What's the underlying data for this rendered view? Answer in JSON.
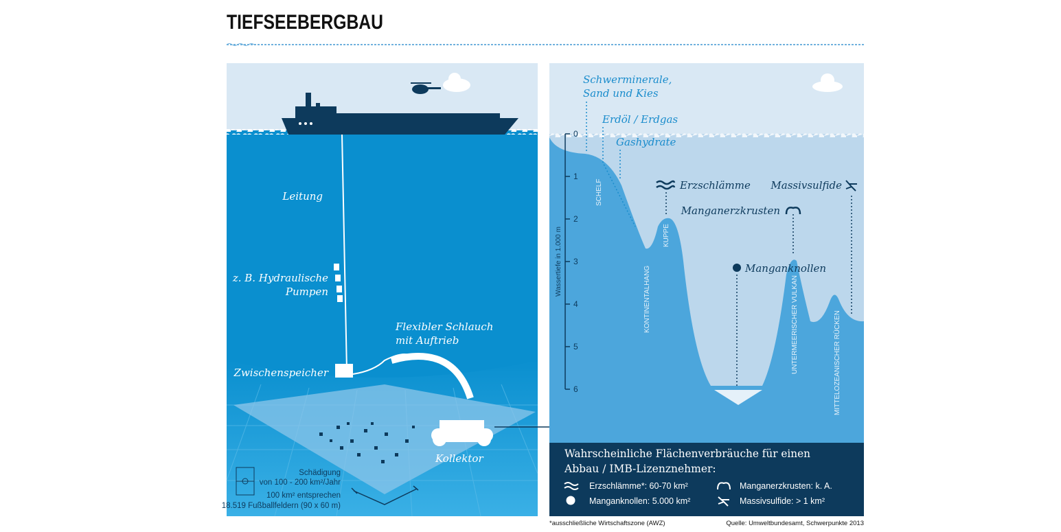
{
  "title": "TIEFSEEBERGBAU",
  "left": {
    "pipe_label": "Leitung",
    "pumps_label": [
      "z. B. Hydraulische",
      "Pumpen"
    ],
    "hose_label": [
      "Flexibler Schlauch",
      "mit Auftrieb"
    ],
    "buffer_label": "Zwischenspeicher",
    "collector_label": "Kollektor",
    "damage_note": [
      "Schädigung",
      "von 100 - 200 km²/Jahr",
      "100 km² entsprechen",
      "18.519 Fußballfeldern (90 x 60 m)"
    ]
  },
  "right": {
    "resources": {
      "heavy_minerals": [
        "Schwerminerale,",
        "Sand und Kies"
      ],
      "oil_gas": "Erdöl / Erdgas",
      "gas_hydrate": "Gashydrate",
      "ore_mud": "Erzschlämme",
      "massive_sulfide": "Massivsulfide",
      "manganese_crusts": "Manganerzkrusten",
      "manganese_nodules": "Manganknollen"
    },
    "zones": {
      "shelf": "SCHELF",
      "slope": "KONTINENTALHANG",
      "knoll": "KUPPE",
      "volcano": "UNTERMEERISCHER VULKAN",
      "ridge": "MITTELOZEANISCHER RÜCKEN"
    },
    "axis": {
      "label": "Wassertiefe in 1.000 m",
      "ticks": [
        "0",
        "1",
        "2",
        "3",
        "4",
        "5",
        "6"
      ]
    },
    "box": {
      "title": [
        "Wahrscheinliche Flächenverbräuche für einen",
        "Abbau / IMB-Lizenznehmer:"
      ],
      "items": [
        {
          "icon": "waves-icon",
          "text": "Erzschlämme*: 60-70 km²"
        },
        {
          "icon": "crust-icon",
          "text": "Manganerzkrusten: k. A."
        },
        {
          "icon": "nodule-icon",
          "text": "Manganknollen: 5.000 km²"
        },
        {
          "icon": "sulfide-icon",
          "text": "Massivsulfide: > 1 km²"
        }
      ]
    }
  },
  "footnote": "*ausschließliche Wirtschaftszone (AWZ)",
  "source": "Quelle: Umweltbundesamt, Schwerpunkte 2013",
  "colors": {
    "navy": "#0d3a5c",
    "deep_water": "#0a8fcf",
    "sky": "#d9e8f4",
    "accent_text": "#1a8ccc"
  }
}
